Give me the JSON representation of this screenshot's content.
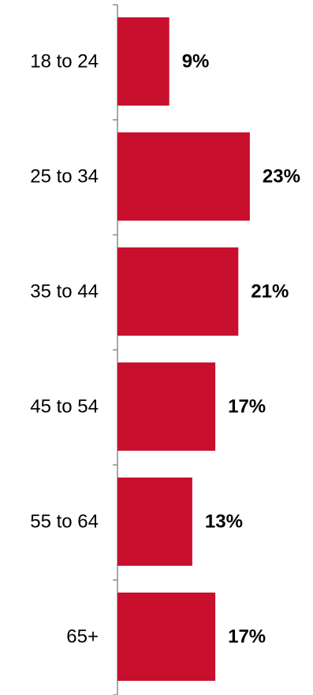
{
  "chart_data": {
    "type": "bar",
    "orientation": "horizontal",
    "categories": [
      "18 to 24",
      "25 to 34",
      "35 to 44",
      "45 to 54",
      "55 to 64",
      "65+"
    ],
    "values": [
      9,
      23,
      21,
      17,
      13,
      17
    ],
    "value_labels": [
      "9%",
      "23%",
      "21%",
      "17%",
      "13%",
      "17%"
    ],
    "bar_color": "#c8102e",
    "grid": false,
    "legend": "none"
  }
}
